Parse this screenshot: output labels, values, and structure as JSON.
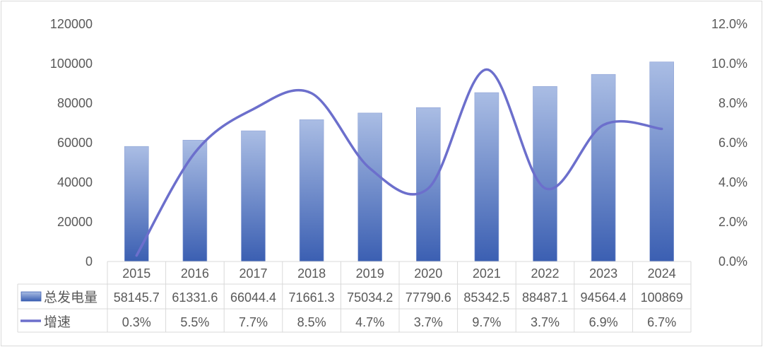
{
  "chart_data": {
    "type": "bar",
    "title": "",
    "categories": [
      "2015",
      "2016",
      "2017",
      "2018",
      "2019",
      "2020",
      "2021",
      "2022",
      "2023",
      "2024"
    ],
    "series": [
      {
        "name": "总发电量",
        "type": "bar",
        "axis": "left",
        "values": [
          58145.7,
          61331.6,
          66044.4,
          71661.3,
          75034.2,
          77790.6,
          85342.5,
          88487.1,
          94564.4,
          100869
        ],
        "labels": [
          "58145.7",
          "61331.6",
          "66044.4",
          "71661.3",
          "75034.2",
          "77790.6",
          "85342.5",
          "88487.1",
          "94564.4",
          "100869"
        ],
        "color": "#4066b8"
      },
      {
        "name": "增速",
        "type": "line",
        "axis": "right",
        "values": [
          0.3,
          5.5,
          7.7,
          8.5,
          4.7,
          3.7,
          9.7,
          3.7,
          6.9,
          6.7
        ],
        "labels": [
          "0.3%",
          "5.5%",
          "7.7%",
          "8.5%",
          "4.7%",
          "3.7%",
          "9.7%",
          "3.7%",
          "6.9%",
          "6.7%"
        ],
        "color": "#6c6fcc"
      }
    ],
    "left_axis": {
      "ylim": [
        0,
        120000
      ],
      "ticks": [
        "0",
        "20000",
        "40000",
        "60000",
        "80000",
        "100000",
        "120000"
      ]
    },
    "right_axis": {
      "ylim": [
        0,
        12
      ],
      "ticks": [
        "0.0%",
        "2.0%",
        "4.0%",
        "6.0%",
        "8.0%",
        "10.0%",
        "12.0%"
      ]
    },
    "legend": "data-table-bottom",
    "grid": false
  }
}
